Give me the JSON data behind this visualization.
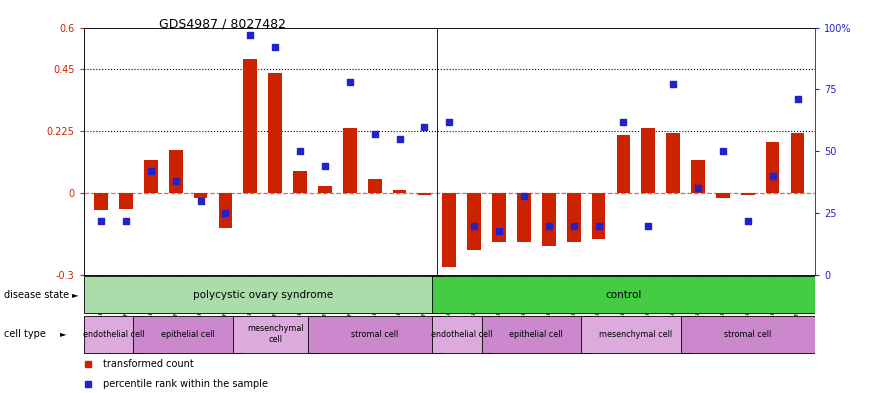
{
  "title": "GDS4987 / 8027482",
  "samples": [
    "GSM1174425",
    "GSM1174429",
    "GSM1174436",
    "GSM1174427",
    "GSM1174430",
    "GSM1174432",
    "GSM1174435",
    "GSM1174424",
    "GSM1174428",
    "GSM1174433",
    "GSM1174423",
    "GSM1174426",
    "GSM1174431",
    "GSM1174434",
    "GSM1174409",
    "GSM1174414",
    "GSM1174418",
    "GSM1174421",
    "GSM1174412",
    "GSM1174416",
    "GSM1174419",
    "GSM1174408",
    "GSM1174413",
    "GSM1174417",
    "GSM1174420",
    "GSM1174410",
    "GSM1174411",
    "GSM1174415",
    "GSM1174422"
  ],
  "transformed_count": [
    -0.065,
    -0.06,
    0.12,
    0.155,
    -0.02,
    -0.13,
    0.485,
    0.435,
    0.08,
    0.025,
    0.235,
    0.05,
    0.01,
    -0.01,
    -0.27,
    -0.21,
    -0.18,
    -0.18,
    -0.195,
    -0.18,
    -0.17,
    0.21,
    0.235,
    0.215,
    0.12,
    -0.02,
    -0.01,
    0.185,
    0.215
  ],
  "percentile_rank": [
    22,
    22,
    42,
    38,
    30,
    25,
    97,
    92,
    50,
    44,
    78,
    57,
    55,
    60,
    62,
    20,
    18,
    32,
    20,
    20,
    20,
    62,
    20,
    77,
    35,
    50,
    22,
    40,
    71
  ],
  "ylim_left": [
    -0.3,
    0.6
  ],
  "ylim_right": [
    0,
    100
  ],
  "yticks_left": [
    -0.3,
    0.0,
    0.225,
    0.45,
    0.6
  ],
  "ytick_labels_left": [
    "-0.3",
    "0",
    "0.225",
    "0.45",
    "0.6"
  ],
  "yticks_right": [
    0,
    25,
    50,
    75,
    100
  ],
  "ytick_labels_right": [
    "0",
    "25",
    "50",
    "75",
    "100%"
  ],
  "hlines": [
    0.225,
    0.45
  ],
  "bar_color": "#cc2200",
  "dot_color": "#2222cc",
  "zero_line_color": "#cc4444",
  "disease_state_groups": [
    {
      "label": "polycystic ovary syndrome",
      "start": 0,
      "end": 14,
      "color": "#aaddaa"
    },
    {
      "label": "control",
      "start": 14,
      "end": 29,
      "color": "#44cc44"
    }
  ],
  "cell_type_groups": [
    {
      "label": "endothelial cell",
      "start": 0,
      "end": 2,
      "color": "#ddaadd"
    },
    {
      "label": "epithelial cell",
      "start": 2,
      "end": 6,
      "color": "#cc88cc"
    },
    {
      "label": "mesenchymal\ncell",
      "start": 6,
      "end": 9,
      "color": "#ddaadd"
    },
    {
      "label": "stromal cell",
      "start": 9,
      "end": 14,
      "color": "#cc88cc"
    },
    {
      "label": "endothelial cell",
      "start": 14,
      "end": 16,
      "color": "#ddaadd"
    },
    {
      "label": "epithelial cell",
      "start": 16,
      "end": 20,
      "color": "#cc88cc"
    },
    {
      "label": "mesenchymal cell",
      "start": 20,
      "end": 24,
      "color": "#ddaadd"
    },
    {
      "label": "stromal cell",
      "start": 24,
      "end": 29,
      "color": "#cc88cc"
    }
  ],
  "legend_items": [
    {
      "label": "transformed count",
      "color": "#cc2200"
    },
    {
      "label": "percentile rank within the sample",
      "color": "#2222cc"
    }
  ],
  "bg_color": "#ffffff",
  "axis_color_left": "#cc2200",
  "axis_color_right": "#2222cc"
}
